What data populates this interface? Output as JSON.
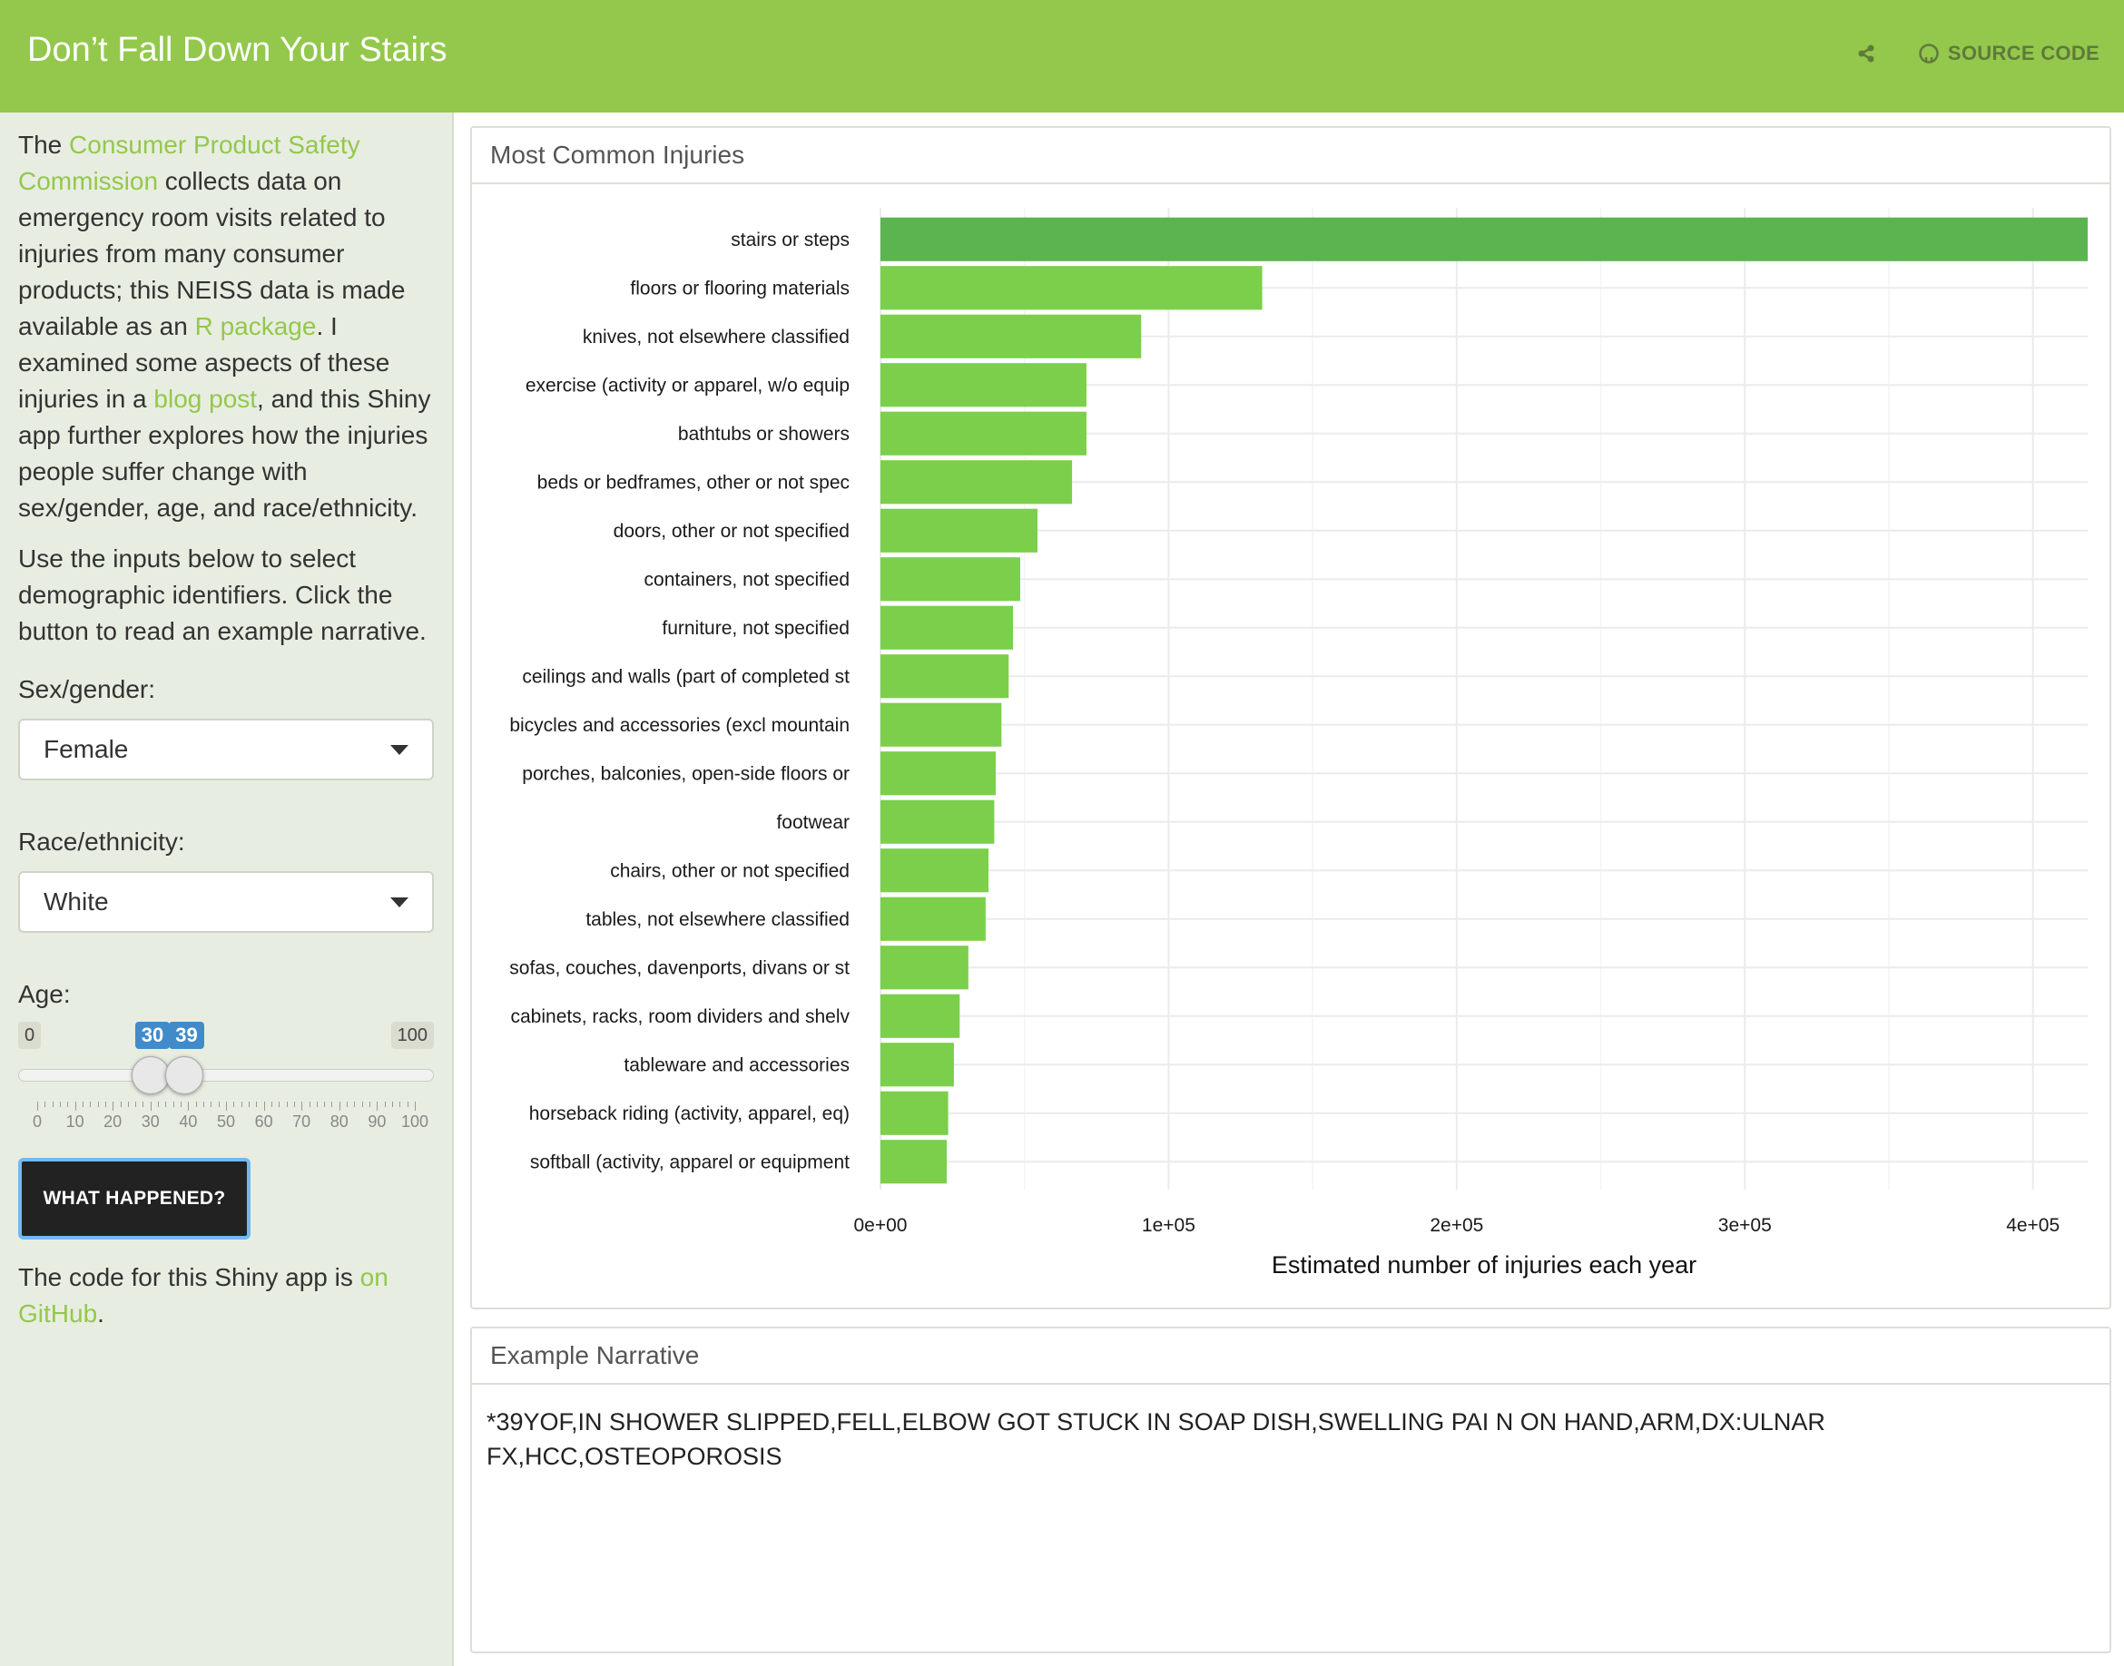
{
  "header": {
    "title": "Don’t Fall Down Your Stairs",
    "share_icon": "share-icon",
    "source_icon": "github-icon",
    "source_label": "SOURCE CODE"
  },
  "sidebar": {
    "intro": {
      "t1": "The ",
      "link1": "Consumer Product Safety Commission",
      "t2": " collects data on emergency room visits related to injuries from many consumer products; this NEISS data is made available as an ",
      "link2": "R package",
      "t3": ". I examined some aspects of these injuries in a ",
      "link3": "blog post",
      "t4": ", and this Shiny app further explores how the injuries people suffer change with sex/gender, age, and race/ethnicity."
    },
    "instructions": "Use the inputs below to select demographic identifiers. Click the button to read an example narrative.",
    "sex_label": "Sex/gender:",
    "sex_value": "Female",
    "race_label": "Race/ethnicity:",
    "race_value": "White",
    "age_label": "Age:",
    "age_slider": {
      "min": 0,
      "max": 100,
      "low": 30,
      "high": 39,
      "min_label": "0",
      "max_label": "100",
      "low_label": "30",
      "high_label": "39",
      "tick_labels": [
        "0",
        "10",
        "20",
        "30",
        "40",
        "50",
        "60",
        "70",
        "80",
        "90",
        "100"
      ]
    },
    "button_label": "WHAT HAPPENED?",
    "footer": {
      "t1": "The code for this Shiny app is ",
      "link": "on GitHub",
      "t2": "."
    }
  },
  "panels": {
    "chart_title": "Most Common Injuries",
    "narrative_title": "Example Narrative",
    "narrative_text": "*39YOF,IN SHOWER SLIPPED,FELL,ELBOW GOT STUCK IN SOAP DISH,SWELLING PAI N ON HAND,ARM,DX:ULNAR FX,HCC,OSTEOPOROSIS"
  },
  "colors": {
    "navbar": "#93c84c",
    "bar": "#7bcf4b",
    "bar_top": "#5cb450",
    "link": "#93c84c",
    "slider_accent": "#428bca"
  },
  "chart_data": {
    "type": "bar",
    "orientation": "horizontal",
    "categories": [
      "stairs or steps",
      "floors or flooring materials",
      "knives, not elsewhere classified",
      "exercise (activity or apparel, w/o equip",
      "bathtubs or showers",
      "beds or bedframes, other or not spec",
      "doors, other or not specified",
      "containers, not specified",
      "furniture, not specified",
      "ceilings and walls (part of completed st",
      "bicycles and accessories (excl mountain",
      "porches, balconies, open-side floors or",
      "footwear",
      "chairs, other or not specified",
      "tables, not elsewhere classified",
      "sofas, couches, davenports, divans or st",
      "cabinets, racks, room dividers and shelv",
      "tableware and accessories",
      "horseback riding (activity, apparel, eq)",
      "softball (activity, apparel or equipment"
    ],
    "values": [
      419000,
      132500,
      90500,
      71500,
      71500,
      66500,
      54500,
      48500,
      46000,
      44500,
      42000,
      40000,
      39500,
      37500,
      36500,
      30500,
      27500,
      25500,
      23500,
      23000
    ],
    "xlabel": "Estimated number of injuries each year",
    "ylabel": "",
    "xlim": [
      0,
      419000
    ],
    "x_ticks": [
      0,
      100000,
      200000,
      300000,
      400000
    ],
    "x_tick_labels": [
      "0e+00",
      "1e+05",
      "2e+05",
      "3e+05",
      "4e+05"
    ],
    "grid": true
  }
}
